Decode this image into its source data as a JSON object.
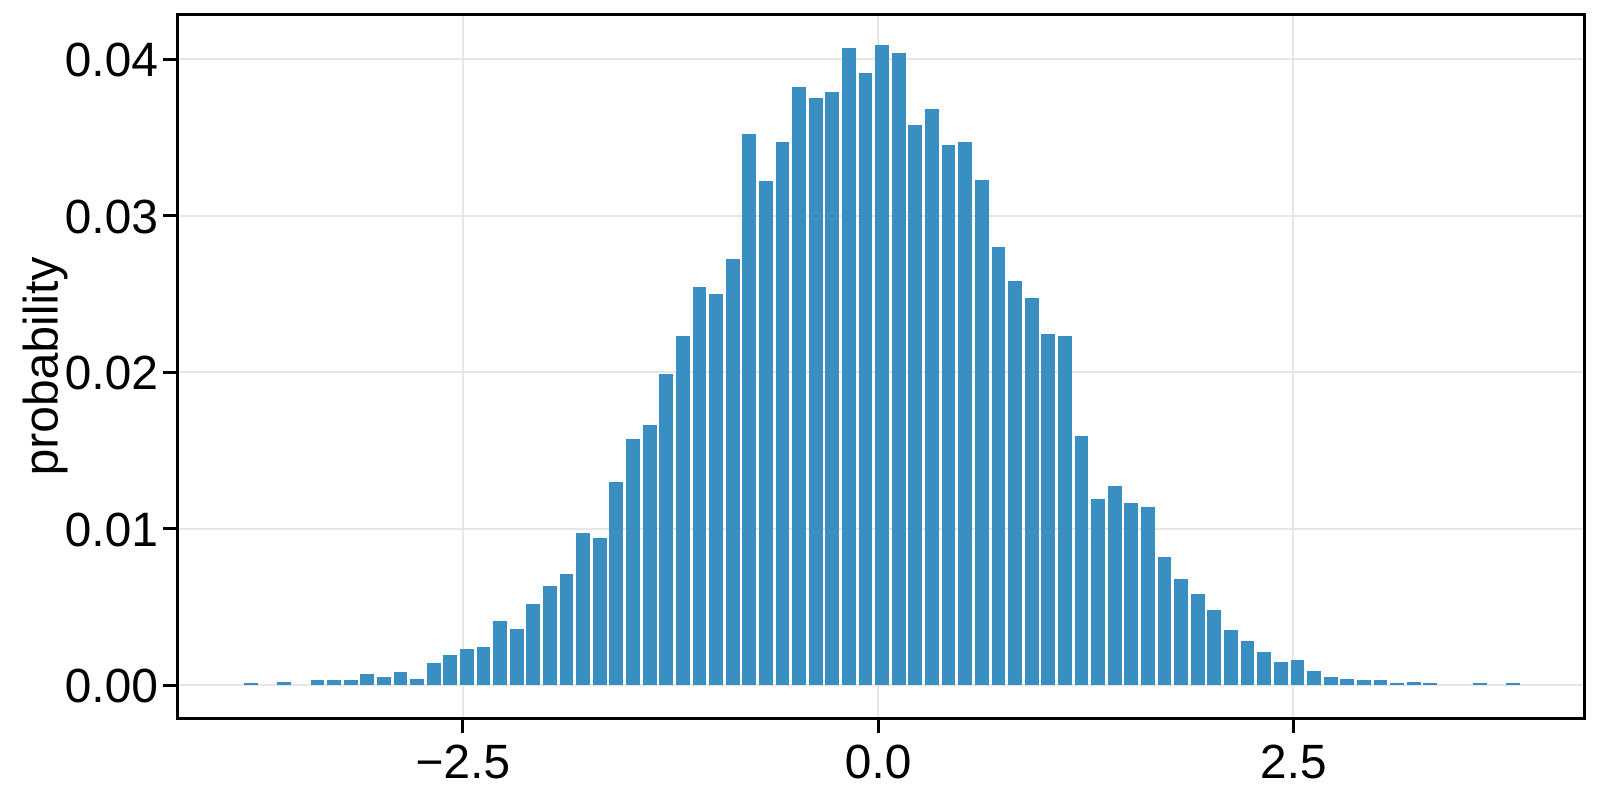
{
  "figure": {
    "background": "#ffffff"
  },
  "chart_data": {
    "type": "bar",
    "subtype": "histogram",
    "title": "",
    "xlabel": "",
    "ylabel": "probability",
    "legend": null,
    "grid": true,
    "bar_color": "#3a8fc2",
    "grid_color": "#e6e6e6",
    "spine_color": "#000000",
    "tick_color": "#000000",
    "label_color": "#000000",
    "xlim": [
      -4.21,
      4.25
    ],
    "ylim": [
      0,
      0.0428
    ],
    "bin_width": 0.1,
    "x_ticks": [
      {
        "value": -2.5,
        "label": "−2.5"
      },
      {
        "value": 0.0,
        "label": "0.0"
      },
      {
        "value": 2.5,
        "label": "2.5"
      }
    ],
    "y_ticks": [
      {
        "value": 0.0,
        "label": "0.00"
      },
      {
        "value": 0.01,
        "label": "0.01"
      },
      {
        "value": 0.02,
        "label": "0.02"
      },
      {
        "value": 0.03,
        "label": "0.03"
      },
      {
        "value": 0.04,
        "label": "0.04"
      }
    ],
    "bin_centers": [
      -3.775,
      -3.675,
      -3.575,
      -3.475,
      -3.375,
      -3.275,
      -3.175,
      -3.075,
      -2.975,
      -2.875,
      -2.775,
      -2.675,
      -2.575,
      -2.475,
      -2.375,
      -2.275,
      -2.175,
      -2.075,
      -1.975,
      -1.875,
      -1.775,
      -1.675,
      -1.575,
      -1.475,
      -1.375,
      -1.275,
      -1.175,
      -1.075,
      -0.975,
      -0.875,
      -0.775,
      -0.675,
      -0.575,
      -0.475,
      -0.375,
      -0.275,
      -0.175,
      -0.075,
      0.025,
      0.125,
      0.225,
      0.325,
      0.425,
      0.525,
      0.625,
      0.725,
      0.825,
      0.925,
      1.025,
      1.125,
      1.225,
      1.325,
      1.425,
      1.525,
      1.625,
      1.725,
      1.825,
      1.925,
      2.025,
      2.125,
      2.225,
      2.325,
      2.425,
      2.525,
      2.625,
      2.725,
      2.825,
      2.925,
      3.025,
      3.125,
      3.225,
      3.325,
      3.425,
      3.525,
      3.625,
      3.725,
      3.825
    ],
    "probabilities": [
      0.0001,
      0.0,
      0.0002,
      0.0,
      0.0003,
      0.0003,
      0.0003,
      0.0007,
      0.0005,
      0.0008,
      0.0004,
      0.0014,
      0.0019,
      0.0023,
      0.0024,
      0.0041,
      0.0036,
      0.0052,
      0.0063,
      0.0071,
      0.0097,
      0.0094,
      0.013,
      0.0157,
      0.0166,
      0.0199,
      0.0223,
      0.0254,
      0.025,
      0.0272,
      0.0352,
      0.0322,
      0.0347,
      0.0382,
      0.0375,
      0.0379,
      0.0407,
      0.0391,
      0.0409,
      0.0404,
      0.0358,
      0.0368,
      0.0345,
      0.0347,
      0.0323,
      0.028,
      0.0258,
      0.0247,
      0.0224,
      0.0223,
      0.0159,
      0.0119,
      0.0127,
      0.0116,
      0.0114,
      0.0082,
      0.0068,
      0.0058,
      0.0048,
      0.0035,
      0.0028,
      0.0021,
      0.0015,
      0.0016,
      0.0009,
      0.0005,
      0.0004,
      0.0003,
      0.0003,
      0.0001,
      0.0002,
      0.0001,
      0.0,
      0.0,
      0.0001,
      0.0,
      0.0001
    ]
  }
}
